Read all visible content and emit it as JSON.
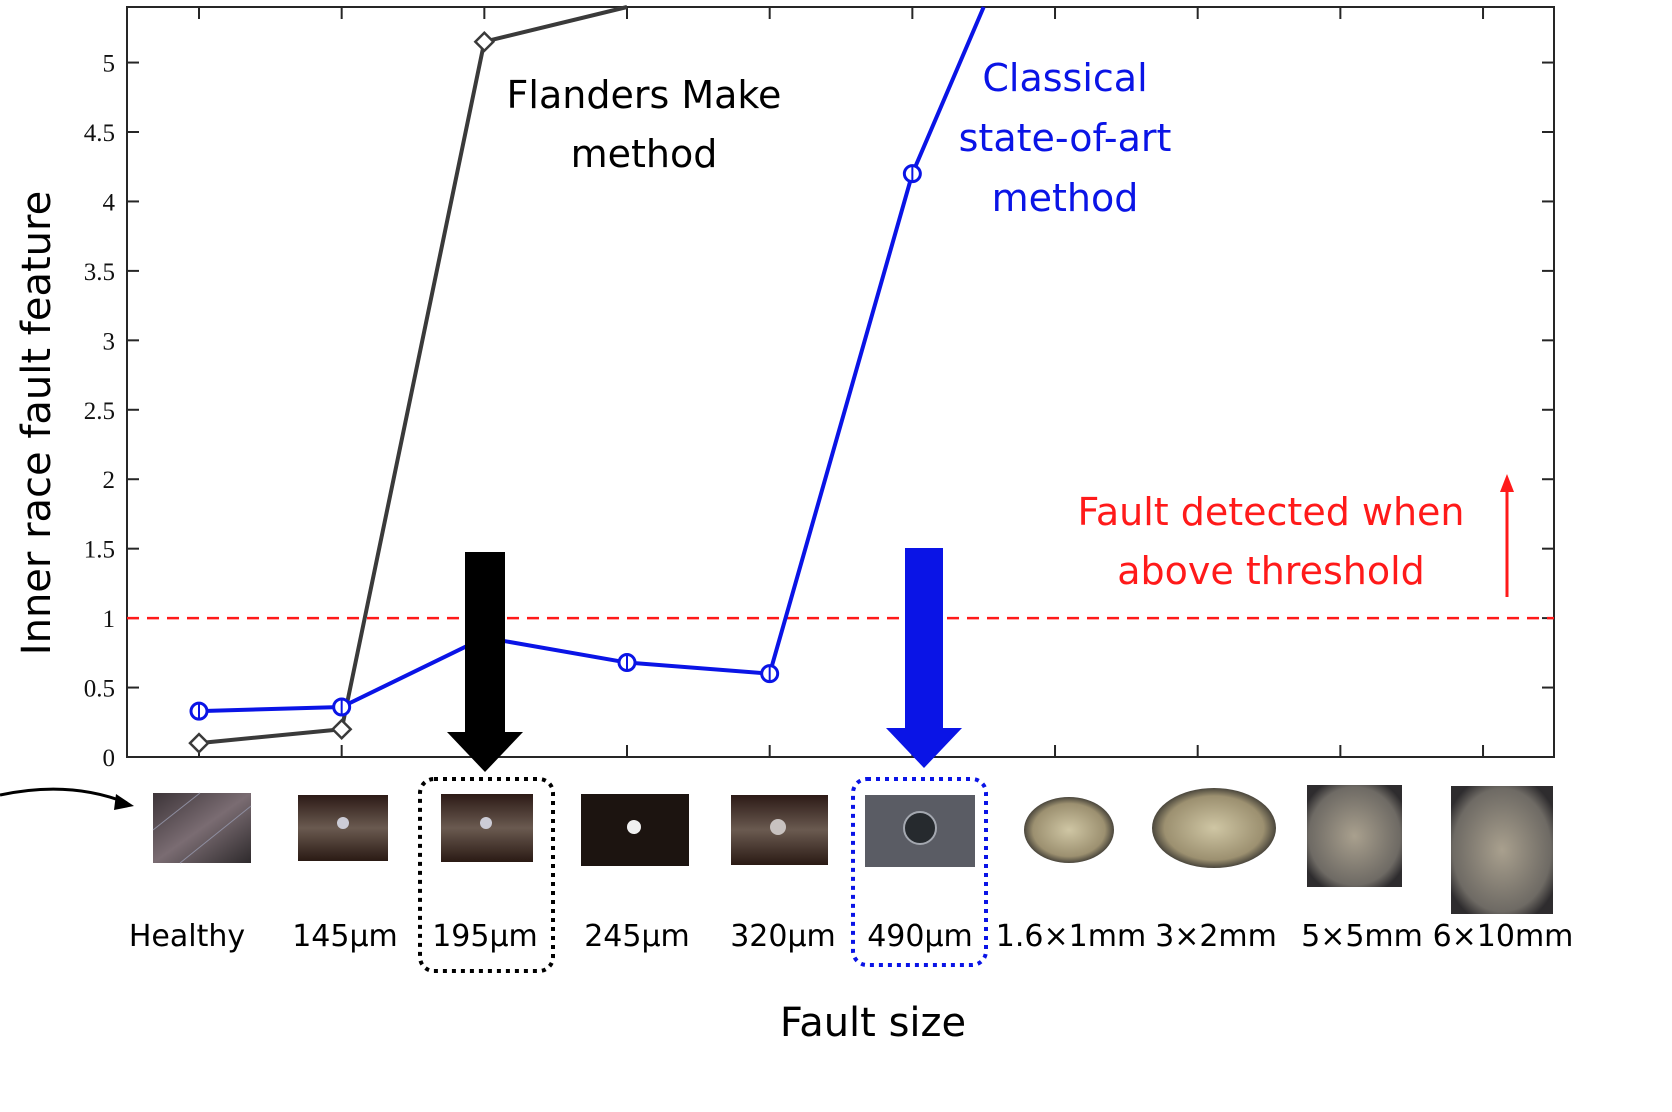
{
  "chart_data": {
    "type": "line",
    "xlabel": "Fault size",
    "ylabel": "Inner race fault feature",
    "categories": [
      "Healthy",
      "145µm",
      "195µm",
      "245µm",
      "320µm",
      "490µm",
      "1.6×1mm",
      "3×2mm",
      "5×5mm",
      "6×10mm"
    ],
    "ylim": [
      0,
      5.4
    ],
    "yticks": [
      0,
      0.5,
      1,
      1.5,
      2,
      2.5,
      3,
      3.5,
      4,
      4.5,
      5
    ],
    "ytick_labels": [
      "0",
      "0.5",
      "1",
      "1.5",
      "2",
      "2.5",
      "3",
      "3.5",
      "4",
      "4.5",
      "5"
    ],
    "threshold": 1,
    "grid": false,
    "series": [
      {
        "label": "Flanders Make\nmethod",
        "color": "#3a3a3a",
        "marker": "diamond",
        "points": [
          [
            0,
            0.1
          ],
          [
            1,
            0.2
          ],
          [
            2,
            5.15
          ],
          [
            3,
            5.4
          ]
        ]
      },
      {
        "label": "Classical\nstate-of-art\nmethod",
        "color": "#0a14e6",
        "marker": "circle",
        "points": [
          [
            0,
            0.33
          ],
          [
            1,
            0.36
          ],
          [
            2,
            0.86
          ],
          [
            3,
            0.68
          ],
          [
            4,
            0.6
          ],
          [
            5,
            4.2
          ],
          [
            5.5,
            5.4
          ]
        ]
      }
    ],
    "annotations": {
      "flanders_text": [
        "Flanders Make",
        "method"
      ],
      "classical_text": [
        "Classical",
        "state-of-art",
        "method"
      ],
      "threshold_text": [
        "Fault detected when",
        "above threshold"
      ],
      "highlight_categories": [
        {
          "index": 2,
          "color": "#000000"
        },
        {
          "index": 5,
          "color": "#0a14e6"
        }
      ]
    },
    "colors": {
      "flanders": "#3a3a3a",
      "classical": "#0a14e6",
      "threshold": "#ff1a1a",
      "axis": "#262626"
    }
  }
}
